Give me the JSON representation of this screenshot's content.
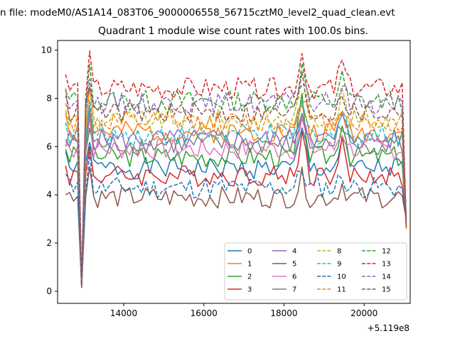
{
  "figure_title": "n file: modeM0/AS1A14_083T06_9000006558_56715cztM0_level2_quad_clean.evt",
  "chart_data": {
    "type": "line",
    "title": "Quadrant 1 module wise count rates with 100.0s bins.",
    "xlabel": "",
    "ylabel": "",
    "x_offset_label": "+5.119e8",
    "xlim": [
      12350,
      21150
    ],
    "ylim": [
      -0.5,
      10.4
    ],
    "xticks": [
      14000,
      16000,
      18000,
      20000
    ],
    "yticks": [
      0,
      2,
      4,
      6,
      8,
      10
    ],
    "legend_loc": "lower right",
    "x": [
      12550,
      12650,
      12750,
      12850,
      12950,
      13050,
      13150,
      13250,
      13350,
      13450,
      13550,
      13650,
      13750,
      13850,
      13950,
      14050,
      14150,
      14250,
      14350,
      14450,
      14550,
      14650,
      14750,
      14850,
      14950,
      15050,
      15150,
      15250,
      15350,
      15450,
      15550,
      15650,
      15750,
      15850,
      15950,
      16050,
      16150,
      16250,
      16350,
      16450,
      16550,
      16650,
      16750,
      16850,
      16950,
      17050,
      17150,
      17250,
      17350,
      17450,
      17550,
      17650,
      17750,
      17850,
      17950,
      18050,
      18150,
      18250,
      18350,
      18450,
      18550,
      18650,
      18750,
      18850,
      18950,
      19050,
      19150,
      19250,
      19350,
      19450,
      19550,
      19650,
      19750,
      19850,
      19950,
      20050,
      20150,
      20250,
      20350,
      20450,
      20550,
      20650,
      20750,
      20850,
      20950,
      21050
    ],
    "series": [
      {
        "name": "0",
        "color": "#1f77b4",
        "style": "solid",
        "level": 5.1,
        "start": 5.8,
        "bump": 1.6,
        "seed": 1
      },
      {
        "name": "1",
        "color": "#ff7f0e",
        "style": "solid",
        "level": 6.6,
        "start": 7.4,
        "bump": 1.3,
        "seed": 2
      },
      {
        "name": "2",
        "color": "#2ca02c",
        "style": "solid",
        "level": 5.6,
        "start": 5.9,
        "bump": 2.2,
        "seed": 3
      },
      {
        "name": "3",
        "color": "#d62728",
        "style": "solid",
        "level": 4.8,
        "start": 5.2,
        "bump": 1.7,
        "seed": 4
      },
      {
        "name": "4",
        "color": "#9467bd",
        "style": "solid",
        "level": 6.3,
        "start": 6.0,
        "bump": 1.2,
        "seed": 5
      },
      {
        "name": "5",
        "color": "#8c564b",
        "style": "solid",
        "level": 3.9,
        "start": 4.0,
        "bump": 0.8,
        "seed": 6
      },
      {
        "name": "6",
        "color": "#e377c2",
        "style": "solid",
        "level": 5.9,
        "start": 6.2,
        "bump": 1.1,
        "seed": 7
      },
      {
        "name": "7",
        "color": "#7f7f7f",
        "style": "solid",
        "level": 6.1,
        "start": 6.3,
        "bump": 1.4,
        "seed": 8
      },
      {
        "name": "8",
        "color": "#bcbd22",
        "style": "dashed",
        "level": 7.1,
        "start": 7.5,
        "bump": 1.5,
        "seed": 9
      },
      {
        "name": "9",
        "color": "#17becf",
        "style": "dashed",
        "level": 6.5,
        "start": 7.0,
        "bump": 1.2,
        "seed": 10
      },
      {
        "name": "10",
        "color": "#1f77b4",
        "style": "dashed",
        "level": 4.3,
        "start": 4.85,
        "bump": 0.7,
        "seed": 11
      },
      {
        "name": "11",
        "color": "#ff7f0e",
        "style": "dashed",
        "level": 7.0,
        "start": 7.8,
        "bump": 1.2,
        "seed": 12
      },
      {
        "name": "12",
        "color": "#2ca02c",
        "style": "dashed",
        "level": 7.9,
        "start": 8.3,
        "bump": 1.3,
        "seed": 13
      },
      {
        "name": "13",
        "color": "#d62728",
        "style": "dashed",
        "level": 8.4,
        "start": 9.0,
        "bump": 1.5,
        "seed": 14
      },
      {
        "name": "14",
        "color": "#9467bd",
        "style": "dashed",
        "level": 7.8,
        "start": 8.1,
        "bump": 1.1,
        "seed": 15
      },
      {
        "name": "15",
        "color": "#8c564b",
        "style": "dashed",
        "level": 7.4,
        "start": 8.4,
        "bump": 1.4,
        "seed": 16
      }
    ]
  }
}
